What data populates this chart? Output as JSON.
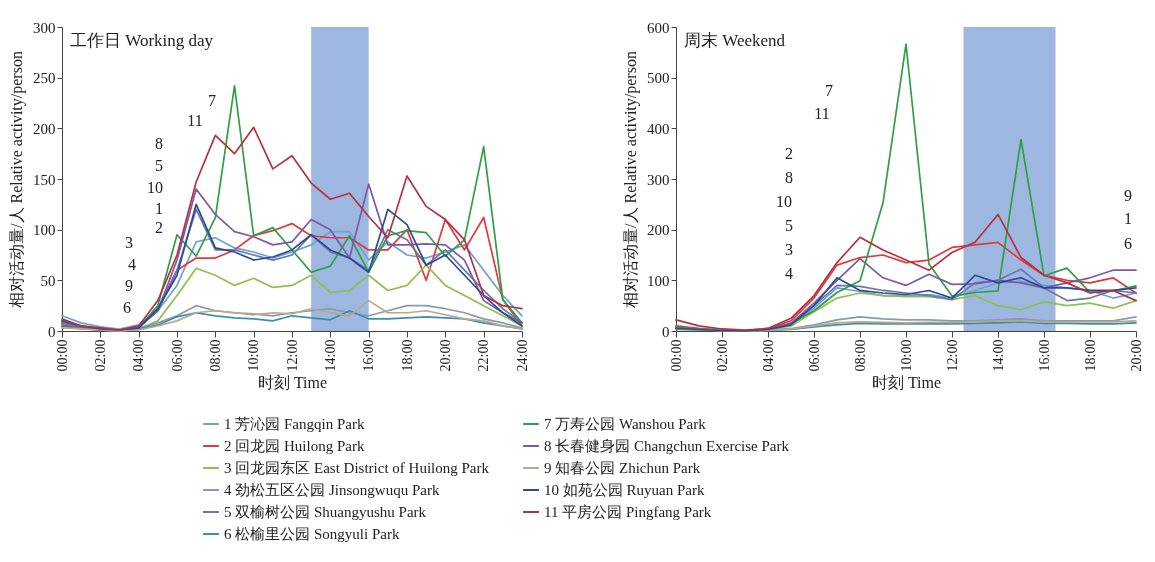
{
  "chart_data": [
    {
      "type": "line",
      "title": "工作日 Working day",
      "xlabel": "时刻 Time",
      "ylabel": "相对活动量/人 Relative activity/person",
      "legend": "bottom",
      "grid": false,
      "x": [
        0,
        1,
        2,
        3,
        4,
        5,
        6,
        7,
        8,
        9,
        10,
        11,
        12,
        13,
        14,
        15,
        16,
        17,
        18,
        19,
        20,
        21,
        22,
        23,
        24
      ],
      "xlim": [
        0,
        24
      ],
      "xticks": [
        {
          "value": 0,
          "label": "00:00"
        },
        {
          "value": 2,
          "label": "02:00"
        },
        {
          "value": 4,
          "label": "04:00"
        },
        {
          "value": 6,
          "label": "06:00"
        },
        {
          "value": 8,
          "label": "08:00"
        },
        {
          "value": 10,
          "label": "10:00"
        },
        {
          "value": 12,
          "label": "12:00"
        },
        {
          "value": 14,
          "label": "14:00"
        },
        {
          "value": 16,
          "label": "16:00"
        },
        {
          "value": 18,
          "label": "18:00"
        },
        {
          "value": 20,
          "label": "20:00"
        },
        {
          "value": 22,
          "label": "22:00"
        },
        {
          "value": 24,
          "label": "24:00"
        }
      ],
      "ylim": [
        0,
        300
      ],
      "yticks": [
        0,
        50,
        100,
        150,
        200,
        250,
        300
      ],
      "bands": [
        {
          "axis": "x",
          "from": 13,
          "to": 16,
          "color": "#7d9fd6"
        }
      ],
      "series": [
        {
          "name": "1 芳沁园 Fangqin Park",
          "color": "#6fa0d8",
          "values": [
            15,
            8,
            4,
            2,
            6,
            20,
            45,
            88,
            92,
            82,
            78,
            72,
            78,
            85,
            98,
            98,
            70,
            88,
            75,
            72,
            78,
            85,
            60,
            35,
            15
          ]
        },
        {
          "name": "2 回龙园 Huilong Park",
          "color": "#e03a3a",
          "values": [
            8,
            4,
            2,
            1,
            4,
            22,
            60,
            72,
            72,
            80,
            94,
            99,
            106,
            94,
            92,
            92,
            80,
            80,
            100,
            50,
            110,
            80,
            112,
            31,
            5
          ]
        },
        {
          "name": "3 回龙园东区 East District of Huilong Park",
          "color": "#8cc152",
          "values": [
            5,
            3,
            1,
            0,
            2,
            10,
            35,
            62,
            55,
            45,
            52,
            43,
            45,
            55,
            38,
            40,
            55,
            40,
            45,
            65,
            45,
            35,
            25,
            15,
            5
          ]
        },
        {
          "name": "4 劲松五区公园 Jinsongwuqu Park",
          "color": "#8a9aa8",
          "values": [
            10,
            5,
            2,
            1,
            3,
            8,
            15,
            25,
            20,
            18,
            17,
            15,
            18,
            20,
            22,
            18,
            15,
            20,
            25,
            25,
            22,
            18,
            12,
            8,
            3
          ]
        },
        {
          "name": "5 双榆树公园 Shuangyushu Park",
          "color": "#6878a8",
          "values": [
            8,
            4,
            2,
            1,
            4,
            20,
            60,
            120,
            80,
            80,
            75,
            70,
            75,
            95,
            78,
            72,
            60,
            100,
            90,
            65,
            80,
            60,
            40,
            22,
            8
          ]
        },
        {
          "name": "6 松榆里公园 Songyuli Park",
          "color": "#3a8fb0",
          "values": [
            5,
            3,
            1,
            0,
            2,
            6,
            14,
            18,
            15,
            13,
            12,
            10,
            15,
            13,
            11,
            20,
            12,
            12,
            13,
            14,
            13,
            12,
            8,
            5,
            2
          ]
        },
        {
          "name": "7 万寿公园 Wanshou Park",
          "color": "#2ea043",
          "values": [
            5,
            2,
            1,
            0,
            3,
            25,
            95,
            74,
            112,
            242,
            94,
            102,
            80,
            58,
            64,
            94,
            58,
            94,
            99,
            97,
            74,
            90,
            182,
            31,
            8
          ]
        },
        {
          "name": "8 长春健身园 Changchun Exercise Park",
          "color": "#7b5aa6",
          "values": [
            6,
            3,
            1,
            0,
            3,
            20,
            70,
            140,
            115,
            98,
            93,
            85,
            88,
            110,
            100,
            72,
            145,
            85,
            85,
            86,
            85,
            70,
            30,
            18,
            8
          ]
        },
        {
          "name": "9 知春公园 Zhichun Park",
          "color": "#b8a888",
          "values": [
            3,
            2,
            1,
            0,
            1,
            5,
            10,
            18,
            20,
            18,
            16,
            18,
            17,
            22,
            18,
            15,
            30,
            18,
            18,
            20,
            16,
            12,
            10,
            5,
            2
          ]
        },
        {
          "name": "10 如苑公园 Ruyuan Park",
          "color": "#2c4a9a",
          "values": [
            10,
            5,
            2,
            1,
            3,
            22,
            55,
            125,
            82,
            78,
            70,
            73,
            80,
            95,
            80,
            72,
            58,
            120,
            105,
            65,
            75,
            55,
            35,
            18,
            5
          ]
        },
        {
          "name": "11 平房公园 Pingfang Park",
          "color": "#b83040",
          "values": [
            12,
            5,
            3,
            1,
            5,
            30,
            75,
            147,
            193,
            175,
            201,
            160,
            173,
            146,
            130,
            136,
            113,
            92,
            153,
            123,
            110,
            90,
            35,
            25,
            22
          ]
        }
      ],
      "annotations": [
        "7",
        "11",
        "8",
        "5",
        "10",
        "1",
        "2",
        "3",
        "4",
        "9",
        "6"
      ]
    },
    {
      "type": "line",
      "title": "周末 Weekend",
      "xlabel": "时刻 Time",
      "ylabel": "相对活动量/人 Relative activity/person",
      "grid": false,
      "x": [
        0,
        1,
        2,
        3,
        4,
        5,
        6,
        7,
        8,
        9,
        10,
        11,
        12,
        13,
        14,
        15,
        16,
        17,
        18,
        19,
        20
      ],
      "xlim": [
        0,
        20
      ],
      "xticks": [
        {
          "value": 0,
          "label": "00:00"
        },
        {
          "value": 2,
          "label": "02:00"
        },
        {
          "value": 4,
          "label": "04:00"
        },
        {
          "value": 6,
          "label": "06:00"
        },
        {
          "value": 8,
          "label": "08:00"
        },
        {
          "value": 10,
          "label": "10:00"
        },
        {
          "value": 12,
          "label": "12:00"
        },
        {
          "value": 14,
          "label": "14:00"
        },
        {
          "value": 16,
          "label": "16:00"
        },
        {
          "value": 18,
          "label": "18:00"
        },
        {
          "value": 20,
          "label": "20:00"
        }
      ],
      "ylim": [
        0,
        600
      ],
      "yticks": [
        0,
        100,
        200,
        300,
        400,
        500,
        600
      ],
      "bands": [
        {
          "axis": "x",
          "from": 12.5,
          "to": 16.5,
          "color": "#7d9fd6"
        }
      ],
      "series": [
        {
          "name": "1 芳沁园 Fangqin Park",
          "color": "#6fa0d8",
          "values": [
            6,
            3,
            1,
            0,
            3,
            12,
            45,
            85,
            78,
            70,
            70,
            72,
            65,
            80,
            95,
            98,
            90,
            85,
            80,
            65,
            75
          ]
        },
        {
          "name": "2 回龙园 Huilong Park",
          "color": "#e03a3a",
          "values": [
            10,
            5,
            2,
            1,
            5,
            20,
            65,
            130,
            145,
            150,
            135,
            140,
            165,
            170,
            175,
            140,
            110,
            100,
            95,
            105,
            75
          ]
        },
        {
          "name": "3 回龙园东区 East District of Huilong Park",
          "color": "#8cc152",
          "values": [
            null,
            null,
            null,
            null,
            2,
            10,
            38,
            65,
            75,
            70,
            68,
            68,
            62,
            70,
            50,
            42,
            58,
            50,
            55,
            45,
            60
          ]
        },
        {
          "name": "4 劲松五区公园 Jinsongwuqu Park",
          "color": "#8a9aa8",
          "values": [
            5,
            3,
            1,
            0,
            2,
            5,
            12,
            22,
            28,
            24,
            22,
            22,
            20,
            20,
            22,
            24,
            20,
            20,
            20,
            20,
            28
          ]
        },
        {
          "name": "5 双榆树公园 Shuangyushu Park",
          "color": "#6878a8",
          "values": [
            5,
            3,
            1,
            0,
            3,
            15,
            50,
            90,
            88,
            80,
            75,
            70,
            62,
            95,
            100,
            122,
            85,
            60,
            65,
            80,
            75
          ]
        },
        {
          "name": "6 松榆里公园 Songyuli Park",
          "color": "#3a8fb0",
          "values": [
            3,
            2,
            1,
            0,
            1,
            3,
            8,
            12,
            15,
            14,
            14,
            14,
            14,
            15,
            16,
            18,
            15,
            15,
            14,
            14,
            16
          ]
        },
        {
          "name": "7 万寿公园 Wanshou Park",
          "color": "#2ea043",
          "values": [
            8,
            4,
            2,
            1,
            3,
            15,
            40,
            76,
            99,
            253,
            566,
            132,
            69,
            76,
            79,
            378,
            109,
            124,
            76,
            79,
            89
          ]
        },
        {
          "name": "8 长春健身园 Changchun Exercise Park",
          "color": "#7b5aa6",
          "values": [
            5,
            3,
            1,
            0,
            3,
            15,
            55,
            100,
            143,
            105,
            90,
            112,
            92,
            93,
            100,
            95,
            85,
            95,
            105,
            120,
            120
          ]
        },
        {
          "name": "9 知春公园 Zhichun Park",
          "color": "#b8a888",
          "values": [
            4,
            2,
            1,
            0,
            1,
            4,
            10,
            16,
            18,
            17,
            16,
            17,
            17,
            18,
            20,
            20,
            18,
            18,
            18,
            18,
            20
          ]
        },
        {
          "name": "10 如苑公园 Ruyuan Park",
          "color": "#2c4a9a",
          "values": [
            5,
            3,
            1,
            0,
            3,
            12,
            50,
            105,
            80,
            75,
            72,
            80,
            65,
            110,
            95,
            105,
            85,
            85,
            80,
            80,
            85
          ]
        },
        {
          "name": "11 平房公园 Pingfang Park",
          "color": "#b83040",
          "values": [
            22,
            10,
            4,
            2,
            5,
            25,
            70,
            135,
            185,
            160,
            140,
            120,
            155,
            175,
            230,
            145,
            110,
            95,
            75,
            80,
            60
          ]
        }
      ],
      "annotations": [
        "7",
        "11",
        "2",
        "8",
        "10",
        "5",
        "3",
        "4",
        "9",
        "1",
        "6"
      ]
    }
  ]
}
